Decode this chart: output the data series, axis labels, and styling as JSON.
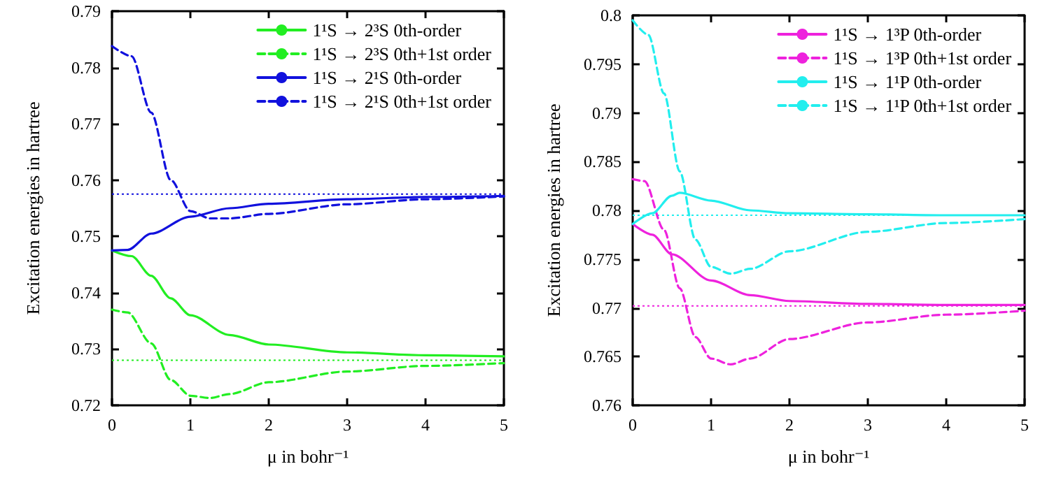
{
  "chart_data": [
    {
      "type": "line",
      "xlabel": "μ in bohr⁻¹",
      "ylabel": "Excitation energies in hartree",
      "xlim": [
        0,
        5
      ],
      "xticks": [
        0,
        1,
        2,
        3,
        4,
        5
      ],
      "ylim": [
        0.72,
        0.79
      ],
      "yticks": [
        0.72,
        0.73,
        0.74,
        0.75,
        0.76,
        0.77,
        0.78,
        0.79
      ],
      "grid": false,
      "legend": "top right",
      "marker": "none",
      "series": [
        {
          "name": "1¹S → 2³S 0th-order",
          "color": "#22ee22",
          "line_style": "solid",
          "x": [
            0,
            0.25,
            0.5,
            0.75,
            1,
            1.5,
            2,
            3,
            4,
            5
          ],
          "values": [
            0.7475,
            0.7465,
            0.743,
            0.739,
            0.736,
            0.7325,
            0.7308,
            0.7294,
            0.7289,
            0.7287
          ]
        },
        {
          "name": "1¹S → 2³S 0th+1st order",
          "color": "#22ee22",
          "line_style": "dashed",
          "x": [
            0,
            0.2,
            0.5,
            0.75,
            1,
            1.25,
            1.5,
            2,
            3,
            4,
            5
          ],
          "values": [
            0.737,
            0.7365,
            0.731,
            0.7245,
            0.7217,
            0.7213,
            0.722,
            0.7241,
            0.726,
            0.727,
            0.7275
          ]
        },
        {
          "name": "1¹S → 2¹S 0th-order",
          "color": "#1111dd",
          "line_style": "solid",
          "x": [
            0,
            0.2,
            0.5,
            1,
            1.5,
            2,
            3,
            4,
            5
          ],
          "values": [
            0.7475,
            0.7476,
            0.7505,
            0.7535,
            0.755,
            0.7558,
            0.7566,
            0.757,
            0.7572
          ]
        },
        {
          "name": "1¹S → 2¹S 0th+1st order",
          "color": "#1111dd",
          "line_style": "dashed",
          "x": [
            0,
            0.25,
            0.5,
            0.75,
            1,
            1.25,
            1.5,
            2,
            3,
            4,
            5
          ],
          "values": [
            0.7838,
            0.782,
            0.772,
            0.76,
            0.7545,
            0.7532,
            0.7532,
            0.754,
            0.7557,
            0.7566,
            0.7571
          ]
        }
      ],
      "ref_lines": [
        {
          "axis": "y",
          "value": 0.7575,
          "color": "#1111dd",
          "line_style": "dotted"
        },
        {
          "axis": "y",
          "value": 0.728,
          "color": "#22ee22",
          "line_style": "dotted"
        }
      ]
    },
    {
      "type": "line",
      "xlabel": "μ in bohr⁻¹",
      "ylabel": "Excitation energies in hartree",
      "xlim": [
        0,
        5
      ],
      "xticks": [
        0,
        1,
        2,
        3,
        4,
        5
      ],
      "ylim": [
        0.76,
        0.8
      ],
      "yticks": [
        0.76,
        0.765,
        0.77,
        0.775,
        0.78,
        0.785,
        0.79,
        0.795,
        0.8
      ],
      "grid": false,
      "legend": "top right",
      "marker": "none",
      "series": [
        {
          "name": "1¹S → 1³P 0th-order",
          "color": "#ee22dd",
          "line_style": "solid",
          "x": [
            0,
            0.25,
            0.5,
            1,
            1.5,
            2,
            3,
            4,
            5
          ],
          "values": [
            0.7786,
            0.7775,
            0.7755,
            0.7728,
            0.7713,
            0.7707,
            0.7704,
            0.7703,
            0.7703
          ]
        },
        {
          "name": "1¹S → 1³P 0th+1st order",
          "color": "#ee22dd",
          "line_style": "dashed",
          "x": [
            0,
            0.15,
            0.4,
            0.6,
            0.8,
            1,
            1.25,
            1.5,
            2,
            3,
            4,
            5
          ],
          "values": [
            0.7832,
            0.783,
            0.778,
            0.772,
            0.767,
            0.7648,
            0.7642,
            0.7648,
            0.7668,
            0.7685,
            0.7693,
            0.7697
          ]
        },
        {
          "name": "1¹S → 1¹P 0th-order",
          "color": "#22eeee",
          "line_style": "solid",
          "x": [
            0,
            0.25,
            0.5,
            0.6,
            1,
            1.5,
            2,
            3,
            4,
            5
          ],
          "values": [
            0.7786,
            0.7797,
            0.7815,
            0.7818,
            0.781,
            0.78,
            0.7797,
            0.7796,
            0.7795,
            0.7795
          ]
        },
        {
          "name": "1¹S → 1¹P 0th+1st order",
          "color": "#22eeee",
          "line_style": "dashed",
          "x": [
            0,
            0.2,
            0.4,
            0.6,
            0.8,
            1,
            1.25,
            1.5,
            2,
            3,
            4,
            5
          ],
          "values": [
            0.7995,
            0.798,
            0.792,
            0.784,
            0.777,
            0.7742,
            0.7735,
            0.774,
            0.7758,
            0.7778,
            0.7787,
            0.7791
          ]
        }
      ],
      "ref_lines": [
        {
          "axis": "y",
          "value": 0.7795,
          "color": "#22eeee",
          "line_style": "dotted"
        },
        {
          "axis": "y",
          "value": 0.7702,
          "color": "#ee22dd",
          "line_style": "dotted"
        }
      ]
    }
  ]
}
